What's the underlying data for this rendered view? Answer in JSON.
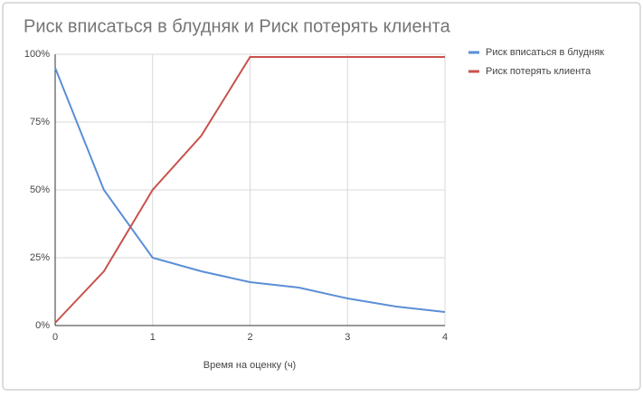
{
  "chart_data": {
    "type": "line",
    "title": "Риск вписаться в блудняк и Риск потерять клиента",
    "x_label": "Время на оценку (ч)",
    "x": [
      0,
      0.5,
      1,
      1.5,
      2,
      2.5,
      3,
      3.5,
      4
    ],
    "series": [
      {
        "name": "Риск вписаться в блудняк",
        "color": "#5b8fd6",
        "values": [
          95,
          50,
          25,
          20,
          16,
          14,
          10,
          7,
          5
        ]
      },
      {
        "name": "Риск потерять клиента",
        "color": "#c8524c",
        "values": [
          1,
          20,
          50,
          70,
          99,
          99,
          99,
          99,
          99
        ]
      }
    ],
    "xlim": [
      0,
      4
    ],
    "xticks": [
      0,
      1,
      2,
      3,
      4
    ],
    "ylim": [
      0,
      100
    ],
    "yticks": [
      {
        "value": 0,
        "label": "0%"
      },
      {
        "value": 25,
        "label": "25%"
      },
      {
        "value": 50,
        "label": "50%"
      },
      {
        "value": 75,
        "label": "75%"
      },
      {
        "value": 100,
        "label": "100%"
      }
    ],
    "grid": true,
    "legend": "right"
  }
}
